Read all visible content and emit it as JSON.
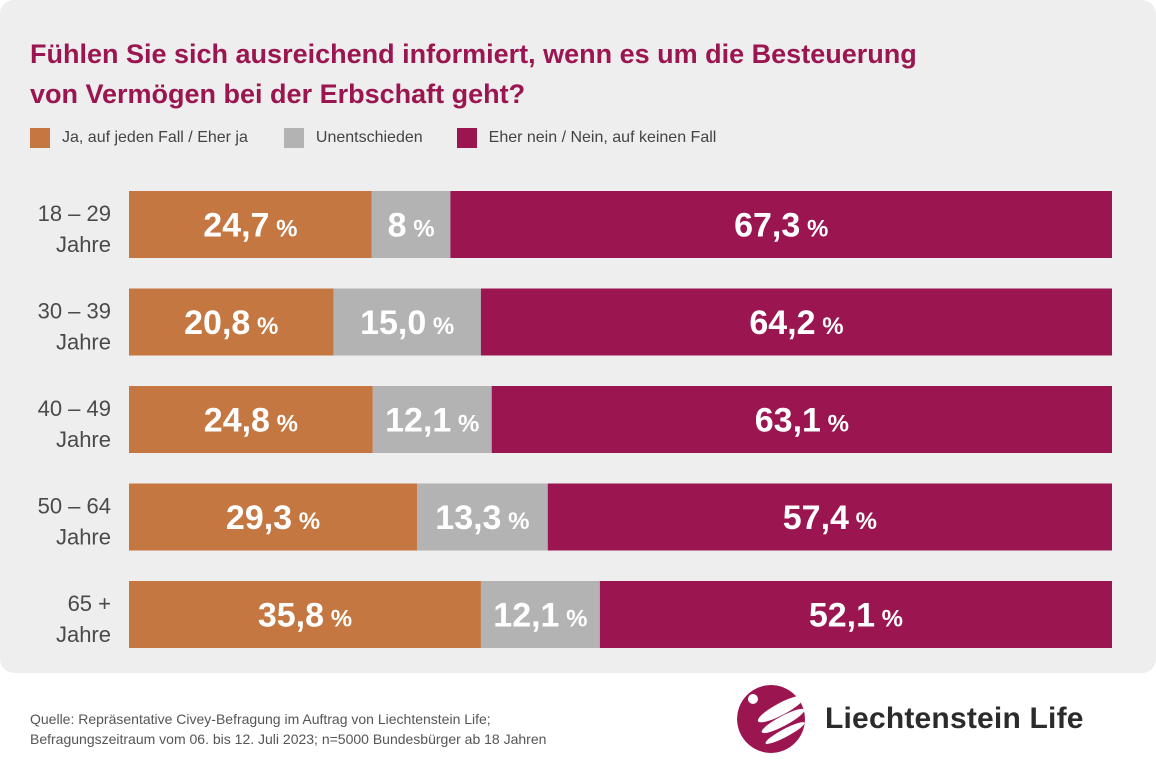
{
  "title_line1": "Fühlen Sie sich ausreichend informiert, wenn es um die Besteuerung",
  "title_line2": "von Vermögen bei der Erbschaft geht?",
  "legend": [
    {
      "label": "Ja, auf jeden Fall / Eher ja",
      "color": "#c47741"
    },
    {
      "label": "Unentschieden",
      "color": "#b3b3b3"
    },
    {
      "label": "Eher nein / Nein, auf keinen Fall",
      "color": "#9b1550"
    }
  ],
  "chart_data": {
    "type": "bar",
    "orientation": "horizontal",
    "stacked": true,
    "unit": "%",
    "categories": [
      {
        "line1": "18 – 29",
        "line2": "Jahre"
      },
      {
        "line1": "30 – 39",
        "line2": "Jahre"
      },
      {
        "line1": "40 – 49",
        "line2": "Jahre"
      },
      {
        "line1": "50 – 64",
        "line2": "Jahre"
      },
      {
        "line1": "65 +",
        "line2": "Jahre"
      }
    ],
    "series": [
      {
        "name": "Ja, auf jeden Fall / Eher ja",
        "color": "#c47741",
        "values": [
          24.7,
          20.8,
          24.8,
          29.3,
          35.8
        ],
        "labels": [
          "24,7",
          "20,8",
          "24,8",
          "29,3",
          "35,8"
        ]
      },
      {
        "name": "Unentschieden",
        "color": "#b3b3b3",
        "values": [
          8,
          15.0,
          12.1,
          13.3,
          12.1
        ],
        "labels": [
          "8",
          "15,0",
          "12,1",
          "13,3",
          "12,1"
        ]
      },
      {
        "name": "Eher nein / Nein, auf keinen Fall",
        "color": "#9b1550",
        "values": [
          67.3,
          64.2,
          63.1,
          57.4,
          52.1
        ],
        "labels": [
          "67,3",
          "64,2",
          "63,1",
          "57,4",
          "52,1"
        ]
      }
    ],
    "xlim": [
      0,
      100
    ]
  },
  "source": {
    "line1": "Quelle: Repräsentative Civey-Befragung im Auftrag von Liechtenstein Life;",
    "line2": "Befragungszeitraum vom 06. bis 12. Juli 2023; n=5000 Bundesbürger ab 18 Jahren"
  },
  "brand": {
    "name": "Liechtenstein Life",
    "logo_icon": "sphere-logo-icon",
    "color": "#9b1550"
  }
}
